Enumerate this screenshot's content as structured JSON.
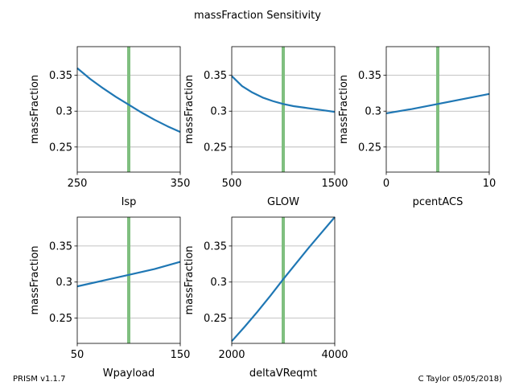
{
  "figure": {
    "title": "massFraction Sensitivity",
    "footer_left": "PRISM v1.1.7",
    "footer_right": "C Taylor 05/05/2018)"
  },
  "colors": {
    "curve": "#1f77b4",
    "marker": "#7fbf7f",
    "grid": "#b0b0b0"
  },
  "chart_data": [
    {
      "type": "line",
      "xlabel": "Isp",
      "ylabel": "massFraction",
      "xlim": [
        250,
        350
      ],
      "ylim": [
        0.215,
        0.39
      ],
      "xticks": [
        250,
        350
      ],
      "xtick_labels": [
        "250",
        "350"
      ],
      "yticks": [
        0.25,
        0.3,
        0.35
      ],
      "ytick_labels": [
        "0.25",
        "0.3",
        "0.35"
      ],
      "grid": "y",
      "marker_x": 300,
      "x": [
        250,
        262.5,
        275,
        287.5,
        300,
        312.5,
        325,
        337.5,
        350
      ],
      "y": [
        0.36,
        0.345,
        0.332,
        0.32,
        0.309,
        0.298,
        0.288,
        0.279,
        0.271
      ]
    },
    {
      "type": "line",
      "xlabel": "GLOW",
      "ylabel": "massFraction",
      "xlim": [
        500,
        1500
      ],
      "ylim": [
        0.215,
        0.39
      ],
      "xticks": [
        500,
        1500
      ],
      "xtick_labels": [
        "500",
        "1500"
      ],
      "yticks": [
        0.25,
        0.3,
        0.35
      ],
      "ytick_labels": [
        "0.25",
        "0.3",
        "0.35"
      ],
      "grid": "y",
      "marker_x": 1000,
      "x": [
        500,
        600,
        700,
        800,
        900,
        1000,
        1100,
        1200,
        1300,
        1400,
        1500
      ],
      "y": [
        0.349,
        0.335,
        0.326,
        0.319,
        0.314,
        0.31,
        0.307,
        0.305,
        0.303,
        0.301,
        0.299
      ]
    },
    {
      "type": "line",
      "xlabel": "pcentACS",
      "ylabel": "massFraction",
      "xlim": [
        0,
        10
      ],
      "ylim": [
        0.215,
        0.39
      ],
      "xticks": [
        0,
        10
      ],
      "xtick_labels": [
        "0",
        "10"
      ],
      "yticks": [
        0.25,
        0.3,
        0.35
      ],
      "ytick_labels": [
        "0.25",
        "0.3",
        "0.35"
      ],
      "grid": "y",
      "marker_x": 5,
      "x": [
        0,
        2.5,
        5,
        7.5,
        10
      ],
      "y": [
        0.297,
        0.303,
        0.31,
        0.317,
        0.324
      ]
    },
    {
      "type": "line",
      "xlabel": "Wpayload",
      "ylabel": "massFraction",
      "xlim": [
        50,
        150
      ],
      "ylim": [
        0.215,
        0.39
      ],
      "xticks": [
        50,
        150
      ],
      "xtick_labels": [
        "50",
        "150"
      ],
      "yticks": [
        0.25,
        0.3,
        0.35
      ],
      "ytick_labels": [
        "0.25",
        "0.3",
        "0.35"
      ],
      "grid": "y",
      "marker_x": 100,
      "x": [
        50,
        75,
        100,
        125,
        150
      ],
      "y": [
        0.294,
        0.302,
        0.31,
        0.318,
        0.328
      ]
    },
    {
      "type": "line",
      "xlabel": "deltaVReqmt",
      "ylabel": "massFraction",
      "xlim": [
        2000,
        4000
      ],
      "ylim": [
        0.215,
        0.39
      ],
      "xticks": [
        2000,
        4000
      ],
      "xtick_labels": [
        "2000",
        "4000"
      ],
      "yticks": [
        0.25,
        0.3,
        0.35
      ],
      "ytick_labels": [
        "0.25",
        "0.3",
        "0.35"
      ],
      "grid": "y",
      "marker_x": 3000,
      "x": [
        2000,
        2250,
        2500,
        2750,
        3000,
        3250,
        3500,
        3750,
        4000
      ],
      "y": [
        0.218,
        0.238,
        0.259,
        0.281,
        0.304,
        0.326,
        0.348,
        0.369,
        0.39
      ]
    }
  ]
}
